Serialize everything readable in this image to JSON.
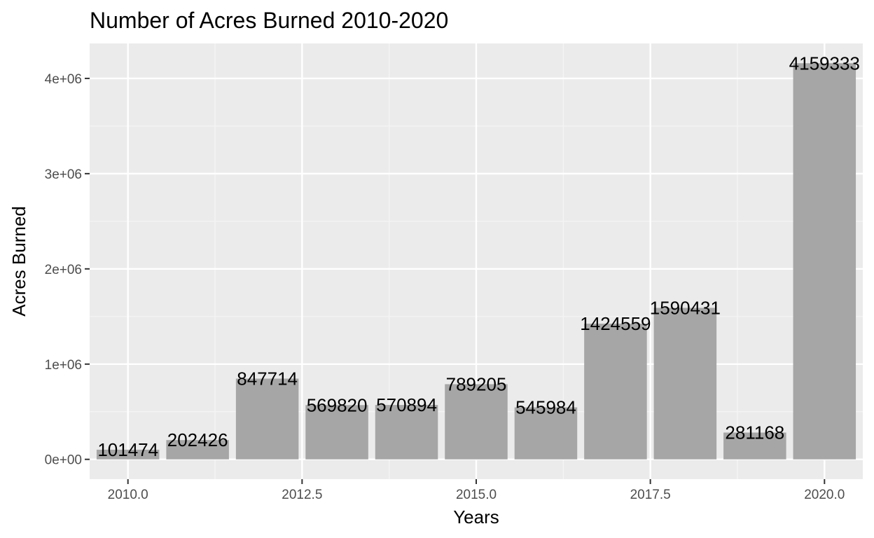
{
  "chart_data": {
    "type": "bar",
    "title": "Number of Acres Burned 2010-2020",
    "xlabel": "Years",
    "ylabel": "Acres Burned",
    "x": [
      2010,
      2011,
      2012,
      2013,
      2014,
      2015,
      2016,
      2017,
      2018,
      2019,
      2020
    ],
    "values": [
      101474,
      202426,
      847714,
      569820,
      570894,
      789205,
      545984,
      1424559,
      1590431,
      281168,
      4159333
    ],
    "data_labels": [
      "101474",
      "202426",
      "847714",
      "569820",
      "570894",
      "789205",
      "545984",
      "1424559",
      "1590431",
      "281168",
      "4159333"
    ],
    "xlim": [
      2009.45,
      2020.55
    ],
    "ylim": [
      -207966.65,
      4367299.65
    ],
    "x_ticks": [
      2010.0,
      2012.5,
      2015.0,
      2017.5,
      2020.0
    ],
    "x_tick_labels": [
      "2010.0",
      "2012.5",
      "2015.0",
      "2017.5",
      "2020.0"
    ],
    "y_ticks": [
      0,
      1000000,
      2000000,
      3000000,
      4000000
    ],
    "y_tick_labels": [
      "0e+00",
      "1e+06",
      "2e+06",
      "3e+06",
      "4e+06"
    ],
    "grid": true,
    "legend": "none",
    "colors": {
      "panel_background": "#ebebeb",
      "grid_major": "#ffffff",
      "grid_minor": "#f5f5f5",
      "bar_fill": "#a6a6a6",
      "tick_label": "#4d4d4d",
      "text": "#000000"
    }
  }
}
